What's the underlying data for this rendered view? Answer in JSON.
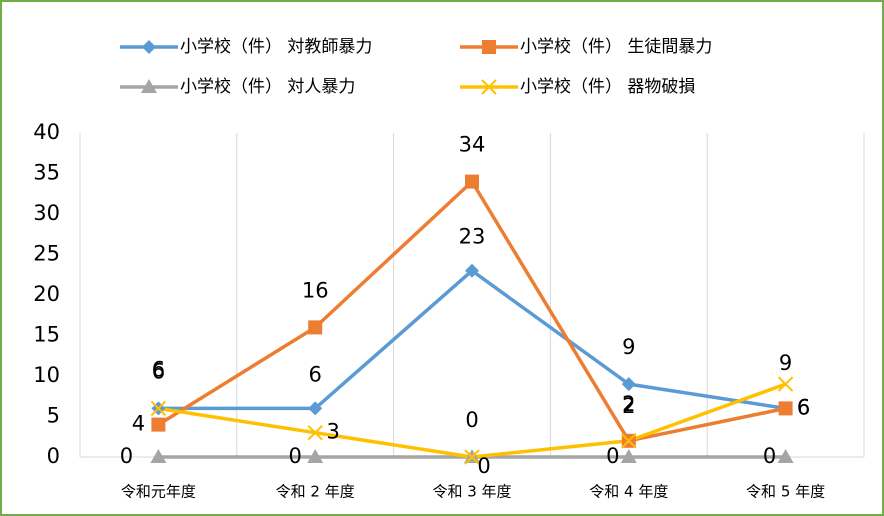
{
  "chart_data": {
    "type": "line",
    "categories": [
      "令和元年度",
      "令和 2 年度",
      "令和 3 年度",
      "令和 4 年度",
      "令和 5 年度"
    ],
    "series": [
      {
        "name": "小学校（件） 対教師暴力",
        "color": "#5b9bd5",
        "marker": "diamond",
        "values": [
          6,
          6,
          23,
          9,
          6
        ]
      },
      {
        "name": "小学校（件） 生徒間暴力",
        "color": "#ed7d31",
        "marker": "square",
        "values": [
          4,
          16,
          34,
          2,
          6
        ]
      },
      {
        "name": "小学校（件） 対人暴力",
        "color": "#a5a5a5",
        "marker": "triangle",
        "values": [
          0,
          0,
          0,
          0,
          0
        ]
      },
      {
        "name": "小学校（件） 器物破損",
        "color": "#ffc000",
        "marker": "x",
        "values": [
          6,
          3,
          0,
          2,
          9
        ]
      }
    ],
    "ylim": [
      0,
      40
    ],
    "yticks": [
      0,
      5,
      10,
      15,
      20,
      25,
      30,
      35,
      40
    ],
    "grid": "vertical",
    "legend": "top"
  }
}
